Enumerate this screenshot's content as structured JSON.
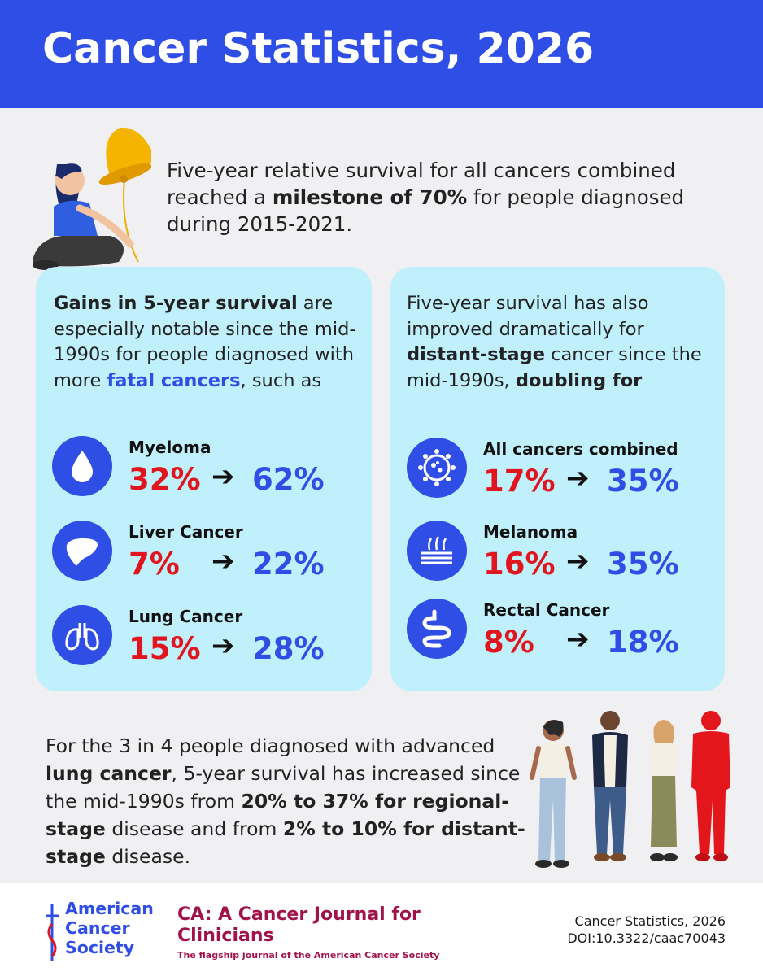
{
  "header": {
    "title": "Cancer Statistics, 2026"
  },
  "intro": {
    "part1": "Five-year relative survival for all cancers combined reached a ",
    "bold": "milestone of 70%",
    "part2": " for people diagnosed during 2015-2021."
  },
  "left_panel": {
    "bold_lead": "Gains in 5-year survival",
    "text1": " are especially notable since the mid-1990s for people diagnosed with more ",
    "highlight": "fatal cancers",
    "text2": ", such as",
    "stats": [
      {
        "name": "Myeloma",
        "from": "32%",
        "arrow": "➔",
        "to": "62%",
        "icon": "drop-icon"
      },
      {
        "name": "Liver Cancer",
        "from": "7%",
        "arrow": "➔",
        "to": "22%",
        "icon": "liver-icon"
      },
      {
        "name": "Lung Cancer",
        "from": "15%",
        "arrow": "➔",
        "to": "28%",
        "icon": "lungs-icon"
      }
    ]
  },
  "right_panel": {
    "text1": "Five-year survival has also improved dramatically for ",
    "bold1": "distant-stage",
    "text2": " cancer since the mid-1990s, ",
    "bold2": "doubling for",
    "stats": [
      {
        "name": "All cancers combined",
        "from": "17%",
        "arrow": "➔",
        "to": "35%",
        "icon": "cell-icon"
      },
      {
        "name": "Melanoma",
        "from": "16%",
        "arrow": "➔",
        "to": "35%",
        "icon": "skin-icon"
      },
      {
        "name": "Rectal Cancer",
        "from": "8%",
        "arrow": "➔",
        "to": "18%",
        "icon": "intestine-icon"
      }
    ]
  },
  "bottom": {
    "t1": "For the 3 in 4 people diagnosed with advanced ",
    "b1": "lung cancer",
    "t2": ", 5-year survival has increased since the mid-1990s from ",
    "b2": "20% to 37% for regional-stage",
    "t3": " disease and from ",
    "b3": "2% to 10% for distant-stage",
    "t4": " disease."
  },
  "footer": {
    "acs_line1": "American",
    "acs_line2": "Cancer",
    "acs_line3": "Society",
    "journal_title": "CA: A Cancer Journal for Clinicians",
    "journal_sub": "The flagship journal of the American Cancer Society",
    "citation_line1": "Cancer Statistics, 2026",
    "citation_line2": "DOI:10.3322/caac70043"
  },
  "colors": {
    "brand_blue": "#2f4ee6",
    "red": "#e0151d",
    "panel": "#bff0fb",
    "journal": "#a2124a"
  }
}
